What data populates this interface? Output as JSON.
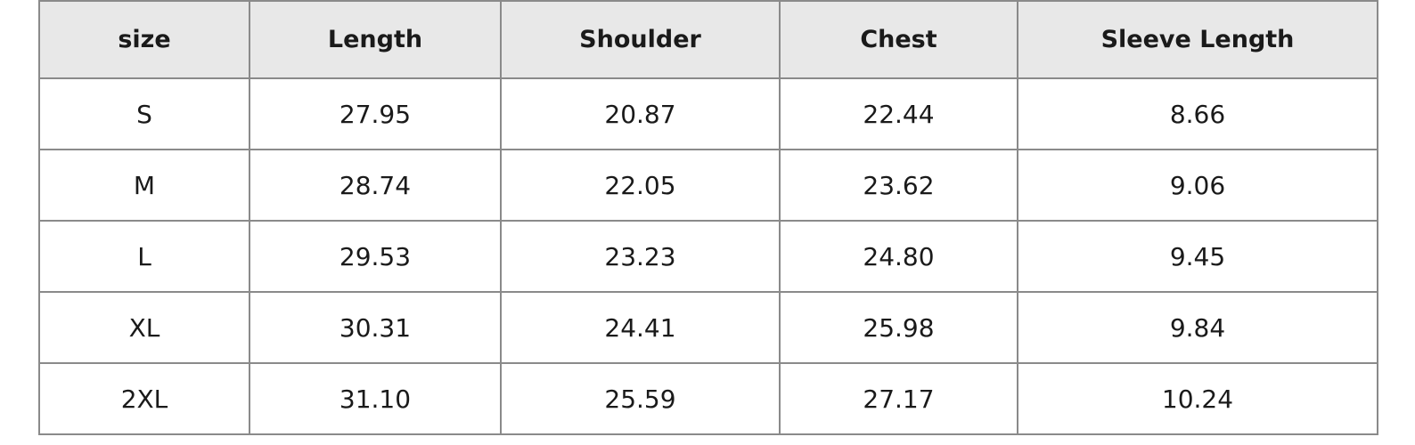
{
  "table": {
    "headers": [
      "size",
      "Length",
      "Shoulder",
      "Chest",
      "Sleeve Length"
    ],
    "rows": [
      [
        "S",
        "27.95",
        "20.87",
        "22.44",
        "8.66"
      ],
      [
        "M",
        "28.74",
        "22.05",
        "23.62",
        "9.06"
      ],
      [
        "L",
        "29.53",
        "23.23",
        "24.80",
        "9.45"
      ],
      [
        "XL",
        "30.31",
        "24.41",
        "25.98",
        "9.84"
      ],
      [
        "2XL",
        "31.10",
        "25.59",
        "27.17",
        "10.24"
      ]
    ]
  },
  "colors": {
    "header_bg": "#e8e8e8",
    "border": "#8a8a8a",
    "text": "#1a1a1a"
  }
}
